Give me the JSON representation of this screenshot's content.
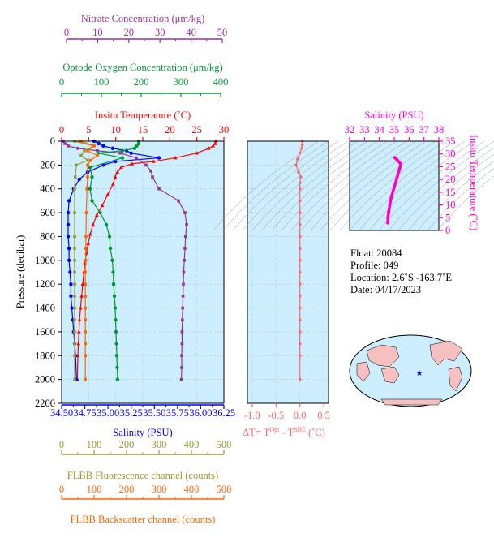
{
  "colors": {
    "nitrate": "#993399",
    "oxygen": "#009933",
    "temperature": "#ff0000",
    "salinity": "#0000ff",
    "fluorescence": "#999933",
    "backscatter": "#ff6600",
    "dt": "#ff6666",
    "ts_curve": "#ff00cc",
    "plot_bg": "#cceeff"
  },
  "axes": {
    "nitrate": {
      "title": "Nitrate Concentration (μm/kg)",
      "ticks": [
        "0",
        "10",
        "20",
        "30",
        "40",
        "50"
      ]
    },
    "oxygen": {
      "title": "Optode Oxygen Concentration (μm/kg)",
      "ticks": [
        "0",
        "100",
        "200",
        "300",
        "400"
      ]
    },
    "temperature": {
      "title": "Insitu Temperature (˚C)",
      "ticks": [
        "0",
        "5",
        "10",
        "15",
        "20",
        "25",
        "30"
      ]
    },
    "pressure": {
      "title": "Pressure (decibar)",
      "ticks": [
        "0",
        "200",
        "400",
        "600",
        "800",
        "1000",
        "1200",
        "1400",
        "1600",
        "1800",
        "2000",
        "2200"
      ]
    },
    "salinity": {
      "title": "Salinity (PSU)",
      "ticks": [
        "34.50",
        "34.75",
        "35.00",
        "35.25",
        "35.50",
        "35.75",
        "36.00",
        "36.25"
      ]
    },
    "fluorescence": {
      "title": "FLBB Fluorescence channel (counts)",
      "ticks": [
        "0",
        "100",
        "200",
        "300",
        "400",
        "500"
      ]
    },
    "backscatter": {
      "title": "FLBB Backscatter channel (counts)",
      "ticks": [
        "0",
        "100",
        "200",
        "300",
        "400",
        "500"
      ]
    },
    "dt": {
      "title_main": "ΔT= T",
      "sup1": "Opt",
      "title_mid": " - T",
      "sup2": "SBE",
      "title_end": " (˚C)",
      "ticks": [
        "-1.0",
        "-0.5",
        "0.0",
        "0.5"
      ]
    },
    "ts_salinity": {
      "title": "Salinity (PSU)",
      "ticks": [
        "32",
        "33",
        "34",
        "35",
        "36",
        "37",
        "38"
      ]
    },
    "ts_temperature": {
      "title": "Insitu Temperature (˚C)",
      "ticks": [
        "0",
        "5",
        "10",
        "15",
        "20",
        "25",
        "30",
        "35"
      ]
    }
  },
  "info": {
    "float": "Float:  20084",
    "profile": "Profile:  049",
    "location": "Location:  2.6˚S  -163.7˚E",
    "date": "Date:  04/17/2023"
  },
  "chart_data": [
    {
      "type": "line",
      "ylabel": "Pressure (decibar)",
      "ylim": [
        2200,
        0
      ],
      "series": [
        {
          "name": "Insitu Temperature (˚C)",
          "xlim": [
            0,
            30
          ],
          "x": [
            28.5,
            28.4,
            28.0,
            27.2,
            25.0,
            21.0,
            17.0,
            13.0,
            11.0,
            10.3,
            9.9,
            9.5,
            8.5,
            7.5,
            6.5,
            5.8,
            5.3,
            4.9,
            4.6,
            4.3,
            4.1,
            3.9,
            3.7,
            3.5,
            3.3,
            3.2,
            3.1,
            3.0,
            2.9
          ],
          "y": [
            0,
            20,
            40,
            60,
            100,
            140,
            170,
            190,
            220,
            260,
            300,
            360,
            450,
            540,
            620,
            700,
            780,
            860,
            940,
            1020,
            1100,
            1200,
            1300,
            1400,
            1500,
            1600,
            1700,
            1800,
            2000
          ]
        },
        {
          "name": "Salinity (PSU)",
          "xlim": [
            34.5,
            36.25
          ],
          "x": [
            34.85,
            34.9,
            34.95,
            35.05,
            35.2,
            35.25,
            35.55,
            35.08,
            34.95,
            34.78,
            34.69,
            34.63,
            34.58,
            34.57,
            34.57,
            34.57,
            34.58,
            34.58,
            34.59,
            34.6,
            34.6,
            34.61,
            34.62,
            34.63,
            34.64,
            34.65,
            34.66
          ],
          "y": [
            0,
            20,
            40,
            60,
            80,
            100,
            140,
            170,
            200,
            260,
            320,
            400,
            500,
            600,
            700,
            800,
            900,
            1000,
            1100,
            1200,
            1300,
            1400,
            1500,
            1600,
            1700,
            1800,
            2000
          ]
        },
        {
          "name": "Nitrate Concentration (μm/kg)",
          "xlim": [
            0,
            50
          ],
          "x": [
            0.5,
            1.0,
            2.0,
            5.0,
            11.0,
            18.0,
            23.0,
            26.0,
            27.5,
            28.0,
            30.0,
            36.0,
            38.0,
            38.5,
            38.2,
            38.0,
            37.8,
            37.6,
            37.5,
            37.4,
            37.3,
            37.2,
            37.1,
            37.1,
            37.0,
            37.0,
            36.9
          ],
          "y": [
            0,
            20,
            40,
            60,
            80,
            100,
            140,
            200,
            250,
            300,
            400,
            500,
            600,
            700,
            800,
            900,
            1000,
            1100,
            1200,
            1300,
            1400,
            1500,
            1600,
            1700,
            1800,
            1900,
            2000
          ]
        },
        {
          "name": "Optode Oxygen Concentration (μm/kg)",
          "xlim": [
            0,
            400
          ],
          "x": [
            190,
            190,
            185,
            180,
            150,
            90,
            150,
            70,
            75,
            70,
            75,
            95,
            110,
            118,
            120,
            125,
            127,
            128,
            130,
            132,
            133,
            134,
            135,
            136,
            137,
            138
          ],
          "y": [
            0,
            20,
            40,
            60,
            80,
            100,
            140,
            220,
            300,
            400,
            500,
            600,
            700,
            800,
            900,
            1000,
            1100,
            1200,
            1300,
            1400,
            1500,
            1600,
            1700,
            1800,
            1900,
            2000
          ]
        },
        {
          "name": "FLBB Fluorescence channel (counts)",
          "xlim": [
            0,
            500
          ],
          "x": [
            40,
            100,
            70,
            60,
            80,
            45,
            42,
            40,
            40,
            40,
            40,
            40,
            40,
            40,
            40,
            40,
            40,
            40,
            40,
            40,
            40
          ],
          "y": [
            0,
            40,
            80,
            120,
            160,
            200,
            300,
            400,
            600,
            800,
            900,
            1000,
            1100,
            1200,
            1300,
            1400,
            1500,
            1600,
            1700,
            1800,
            2000
          ]
        },
        {
          "name": "FLBB Backscatter channel (counts)",
          "xlim": [
            0,
            500
          ],
          "x": [
            60,
            100,
            80,
            110,
            90,
            80,
            80,
            78,
            76,
            75,
            74,
            74,
            73,
            73,
            73,
            73,
            73,
            73,
            73,
            73,
            73
          ],
          "y": [
            0,
            40,
            80,
            120,
            160,
            200,
            300,
            400,
            600,
            800,
            900,
            1000,
            1100,
            1200,
            1300,
            1400,
            1500,
            1600,
            1700,
            1800,
            2000
          ]
        }
      ]
    },
    {
      "type": "line",
      "xlabel": "ΔT= T Opt - T SBE (˚C)",
      "xlim": [
        -1.1,
        0.6
      ],
      "ylim": [
        2200,
        0
      ],
      "series": [
        {
          "name": "ΔT",
          "x": [
            0.05,
            0.05,
            0.04,
            0.0,
            -0.05,
            -0.08,
            -0.03,
            0.02,
            0.0,
            0.0,
            0.0,
            0.0,
            0.0,
            0.0,
            0.0,
            0.0,
            0.0,
            0.0,
            0.0,
            0.0,
            0.0,
            0.0,
            0.0,
            0.0,
            0.0
          ],
          "y": [
            0,
            30,
            60,
            100,
            150,
            200,
            260,
            300,
            350,
            400,
            500,
            600,
            700,
            800,
            900,
            1000,
            1100,
            1200,
            1300,
            1400,
            1500,
            1600,
            1700,
            1800,
            2000
          ]
        }
      ]
    },
    {
      "type": "line",
      "xlabel": "Salinity (PSU)",
      "ylabel": "Insitu Temperature (˚C)",
      "xlim": [
        32,
        38
      ],
      "ylim": [
        0,
        35
      ],
      "series": [
        {
          "name": "T-S",
          "x": [
            35.05,
            35.15,
            35.45,
            35.35,
            35.2,
            35.0,
            34.8,
            34.7,
            34.62,
            34.58,
            34.57
          ],
          "y": [
            28.5,
            28.0,
            26.0,
            24.0,
            21.0,
            17.0,
            13.0,
            10.0,
            7.0,
            5.0,
            3.0
          ]
        }
      ]
    }
  ]
}
